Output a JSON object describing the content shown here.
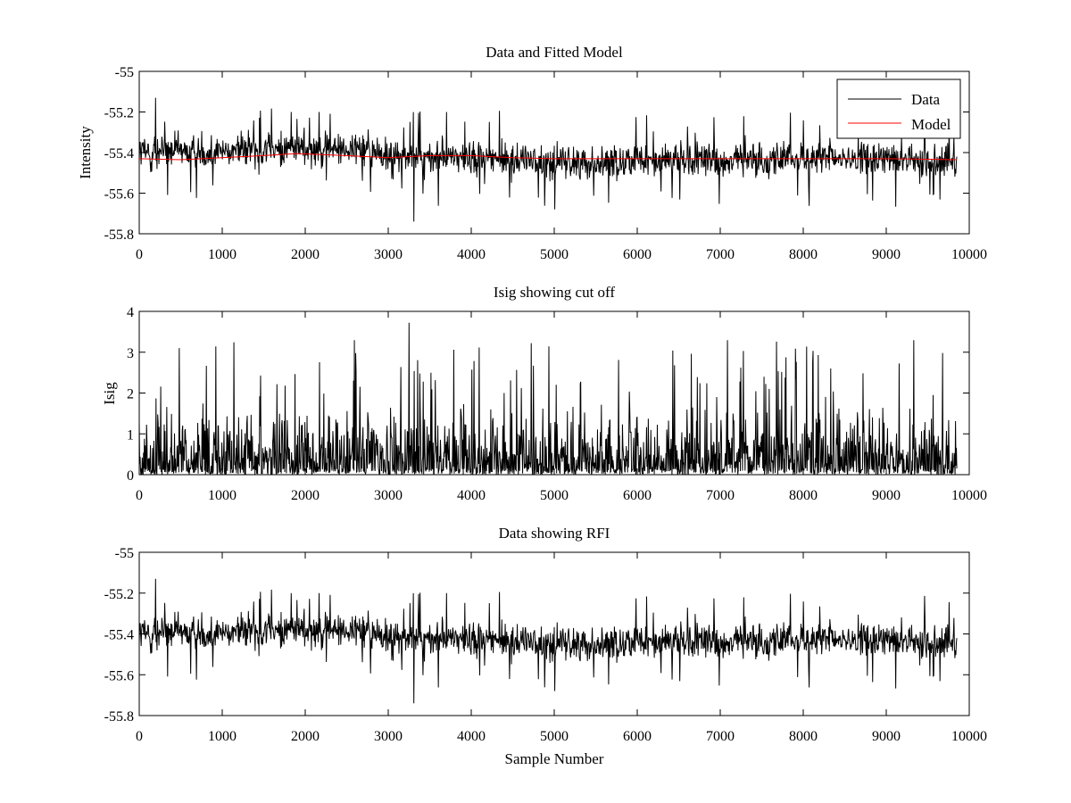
{
  "figure": {
    "background": "#ffffff"
  },
  "chart_data": [
    {
      "type": "line",
      "title": "Data and Fitted Model",
      "xlabel": "",
      "ylabel": "Intensity",
      "xlim": [
        0,
        10000
      ],
      "ylim": [
        -55.8,
        -55
      ],
      "xticks": [
        0,
        1000,
        2000,
        3000,
        4000,
        5000,
        6000,
        7000,
        8000,
        9000,
        10000
      ],
      "xtick_labels": [
        "0",
        "1000",
        "2000",
        "3000",
        "4000",
        "5000",
        "6000",
        "7000",
        "8000",
        "9000",
        "10000"
      ],
      "yticks": [
        -55.8,
        -55.6,
        -55.4,
        -55.2,
        -55
      ],
      "ytick_labels": [
        "-55.8",
        "-55.6",
        "-55.4",
        "-55.2",
        "-55"
      ],
      "grid": false,
      "legend": {
        "position": "top-right",
        "entries": [
          "Data",
          "Model"
        ]
      },
      "series": [
        {
          "name": "Data",
          "color": "#000000",
          "kind": "noise",
          "x_range": [
            0,
            9850
          ],
          "envelope_x": [
            0,
            1000,
            2000,
            2700,
            3000,
            4000,
            5000,
            6000,
            7000,
            8000,
            9000,
            9850
          ],
          "envelope_center": [
            -55.4,
            -55.39,
            -55.38,
            -55.38,
            -55.43,
            -55.42,
            -55.45,
            -55.44,
            -55.44,
            -55.43,
            -55.43,
            -55.44
          ],
          "envelope_spread": 0.08,
          "extreme_min": -55.74,
          "extreme_max": -55.13
        },
        {
          "name": "Model",
          "color": "#ff0000",
          "x": [
            0,
            500,
            1000,
            1500,
            1900,
            2500,
            3000,
            3500,
            4000,
            4500,
            5000,
            5500,
            6000,
            7000,
            8000,
            9000,
            9850
          ],
          "values": [
            -55.43,
            -55.435,
            -55.425,
            -55.415,
            -55.405,
            -55.415,
            -55.425,
            -55.415,
            -55.415,
            -55.425,
            -55.43,
            -55.43,
            -55.43,
            -55.43,
            -55.43,
            -55.43,
            -55.435
          ]
        }
      ]
    },
    {
      "type": "line",
      "title": "Isig showing cut off",
      "xlabel": "",
      "ylabel": "Isig",
      "xlim": [
        0,
        10000
      ],
      "ylim": [
        0,
        4
      ],
      "xticks": [
        0,
        1000,
        2000,
        3000,
        4000,
        5000,
        6000,
        7000,
        8000,
        9000,
        10000
      ],
      "xtick_labels": [
        "0",
        "1000",
        "2000",
        "3000",
        "4000",
        "5000",
        "6000",
        "7000",
        "8000",
        "9000",
        "10000"
      ],
      "yticks": [
        0,
        1,
        2,
        3,
        4
      ],
      "ytick_labels": [
        "0",
        "1",
        "2",
        "3",
        "4"
      ],
      "grid": false,
      "series": [
        {
          "name": "Isig",
          "color": "#000000",
          "kind": "abs-noise",
          "x_range": [
            0,
            9850
          ],
          "typical_max": 1.9,
          "extreme_max": 3.72
        }
      ]
    },
    {
      "type": "line",
      "title": "Data showing RFI",
      "xlabel": "Sample Number",
      "ylabel": "",
      "xlim": [
        0,
        10000
      ],
      "ylim": [
        -55.8,
        -55
      ],
      "xticks": [
        0,
        1000,
        2000,
        3000,
        4000,
        5000,
        6000,
        7000,
        8000,
        9000,
        10000
      ],
      "xtick_labels": [
        "0",
        "1000",
        "2000",
        "3000",
        "4000",
        "5000",
        "6000",
        "7000",
        "8000",
        "9000",
        "10000"
      ],
      "yticks": [
        -55.8,
        -55.6,
        -55.4,
        -55.2,
        -55
      ],
      "ytick_labels": [
        "-55.8",
        "-55.6",
        "-55.4",
        "-55.2",
        "-55"
      ],
      "grid": false,
      "series": [
        {
          "name": "Data",
          "color": "#000000",
          "kind": "noise",
          "x_range": [
            0,
            9850
          ],
          "envelope_x": [
            0,
            1000,
            2000,
            2700,
            3000,
            4000,
            5000,
            6000,
            7000,
            8000,
            9000,
            9850
          ],
          "envelope_center": [
            -55.4,
            -55.39,
            -55.38,
            -55.38,
            -55.43,
            -55.42,
            -55.45,
            -55.44,
            -55.44,
            -55.43,
            -55.43,
            -55.44
          ],
          "envelope_spread": 0.08,
          "extreme_min": -55.74,
          "extreme_max": -55.13
        }
      ]
    }
  ]
}
